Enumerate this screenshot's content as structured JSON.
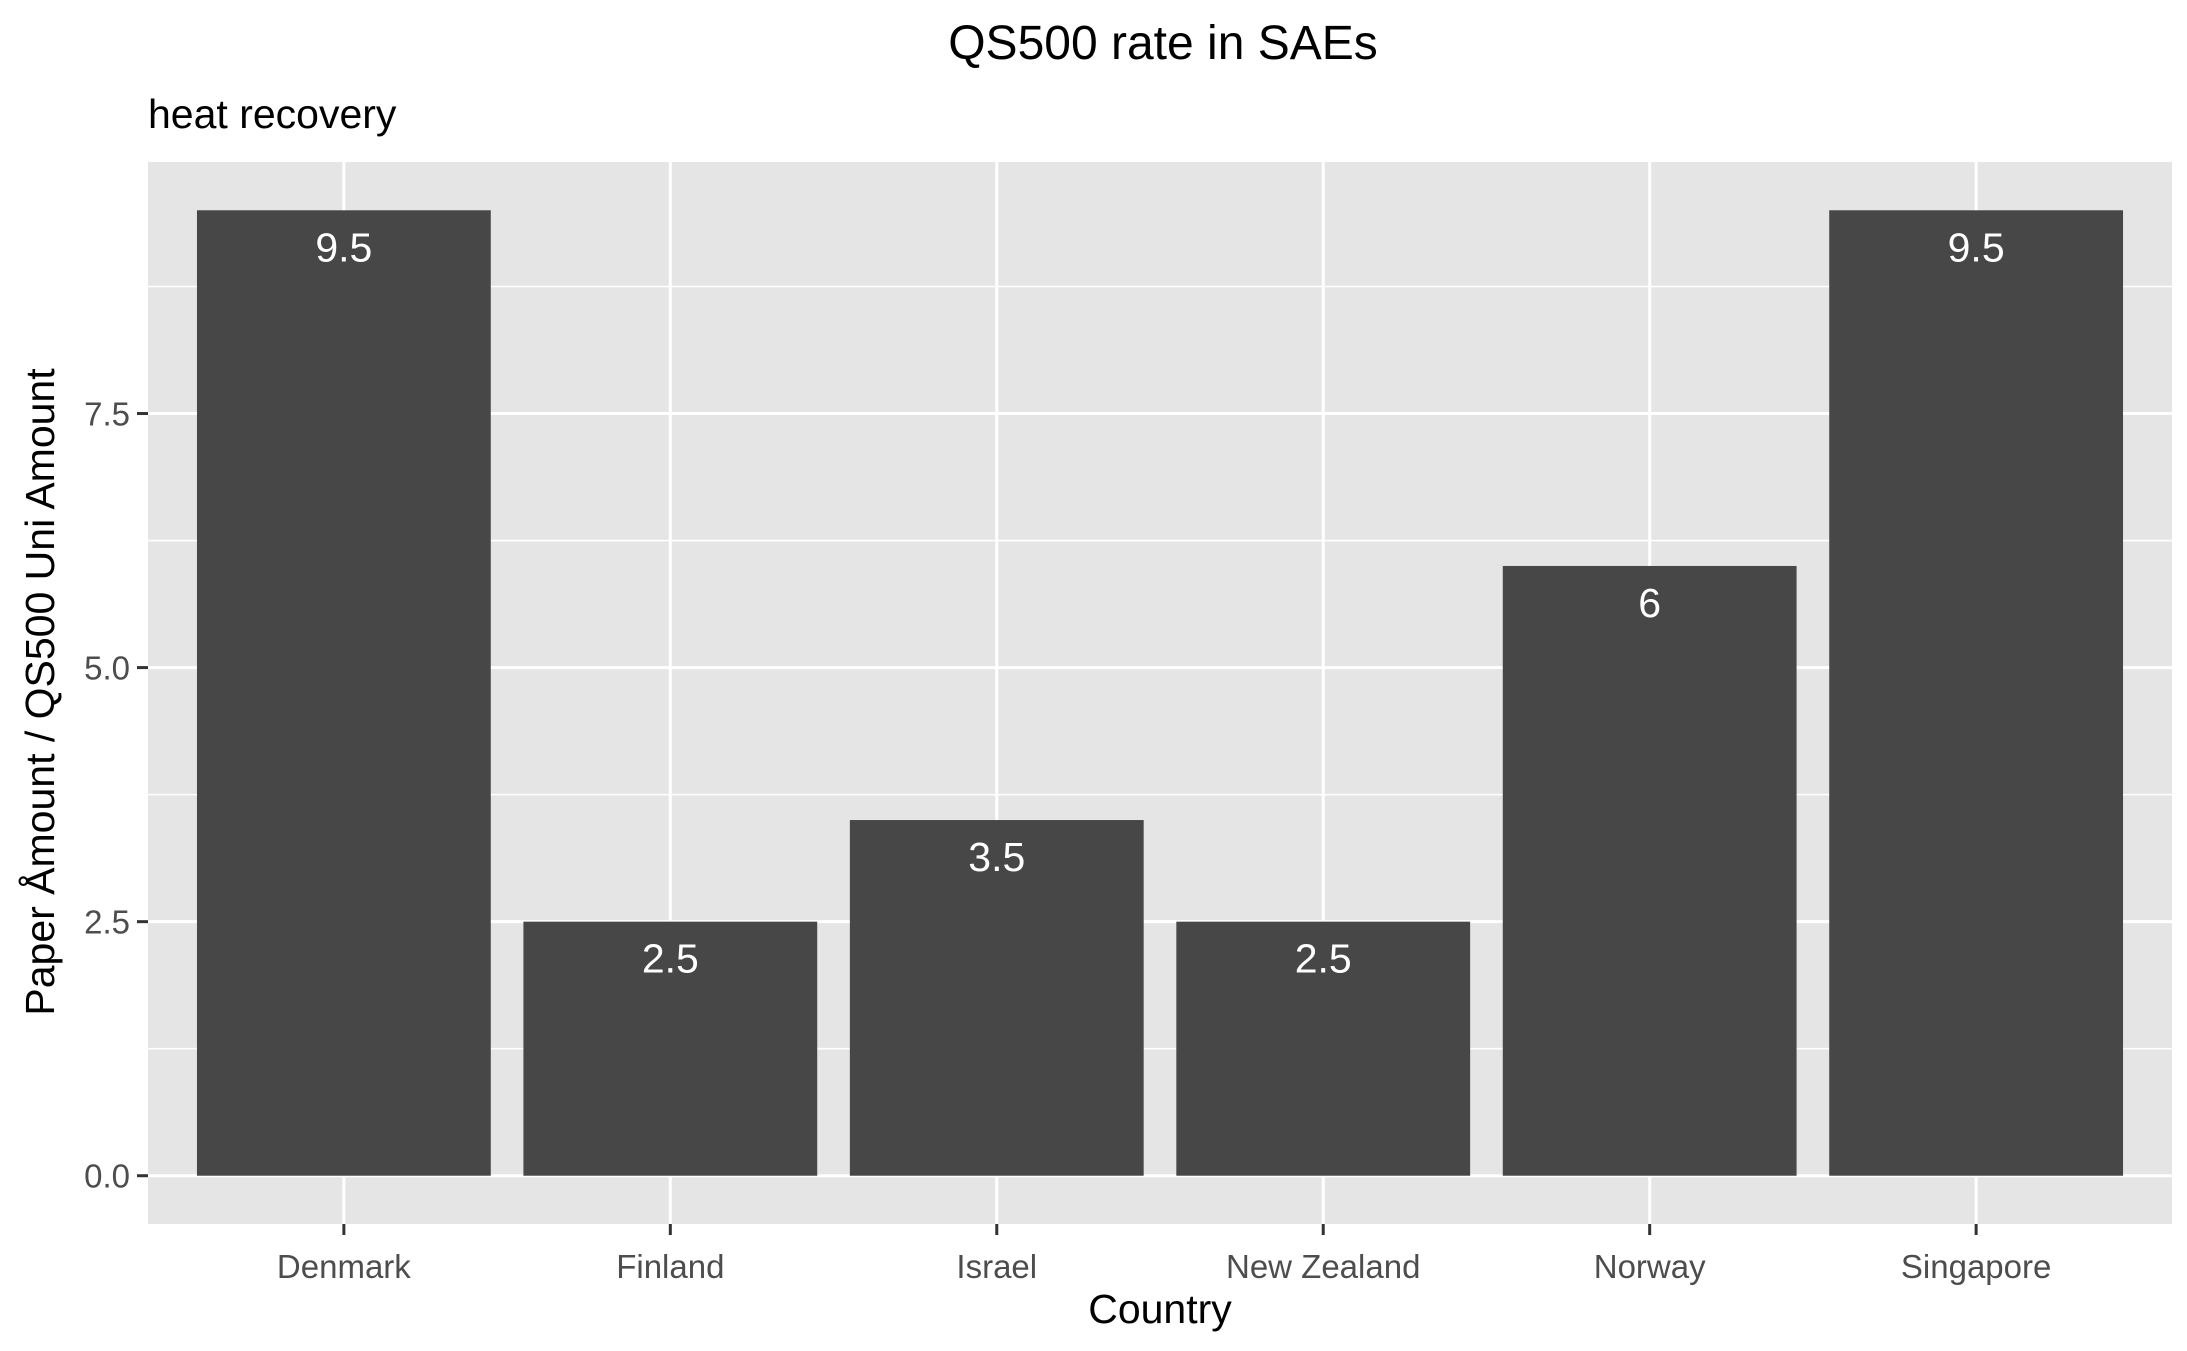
{
  "colors": {
    "panel_background": "#e5e5e5",
    "grid": "#ffffff",
    "bar_fill": "#474747",
    "bar_label": "#ffffff",
    "tick": "#333333"
  },
  "chart_data": {
    "type": "bar",
    "title": "QS500 rate in SAEs",
    "subtitle": "heat recovery",
    "xlabel": "Country",
    "ylabel": "Paper Åmount / QS500 Uni Amount",
    "categories": [
      "Denmark",
      "Finland",
      "Israel",
      "New Zealand",
      "Norway",
      "Singapore"
    ],
    "values": [
      9.5,
      2.5,
      3.5,
      2.5,
      6,
      9.5
    ],
    "value_labels": [
      "9.5",
      "2.5",
      "3.5",
      "2.5",
      "6",
      "9.5"
    ],
    "yticks": [
      0,
      2.5,
      5,
      7.5
    ],
    "ytick_labels": [
      "0.0",
      "2.5",
      "5.0",
      "7.5"
    ],
    "ylim": [
      -0.475,
      9.975
    ],
    "grid": true,
    "legend": "none"
  }
}
